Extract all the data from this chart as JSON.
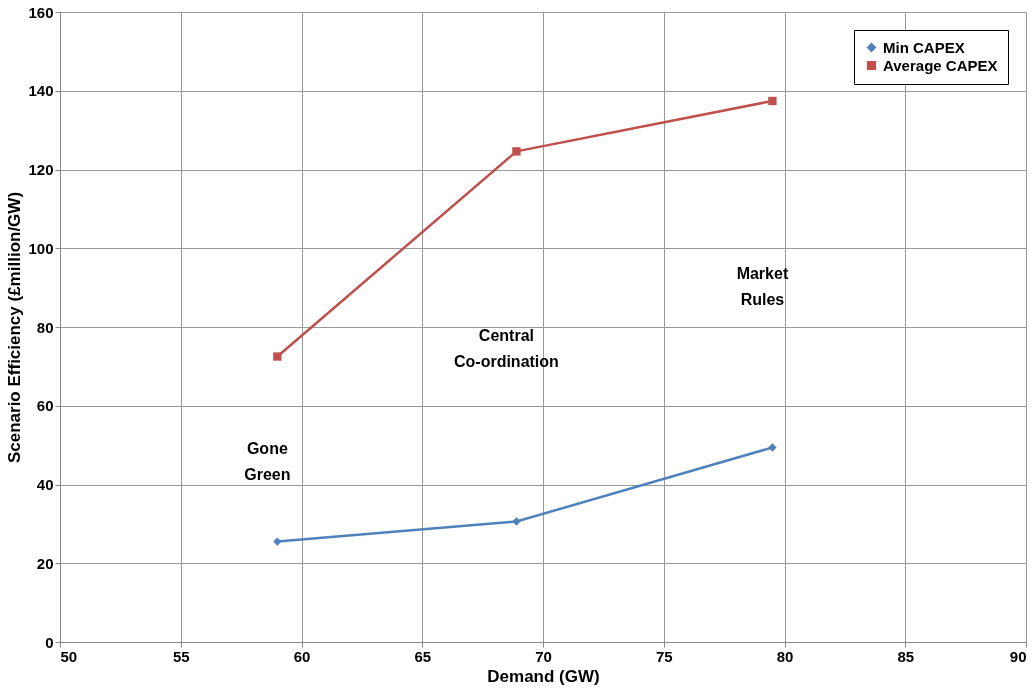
{
  "chart_data": {
    "type": "line",
    "xlabel": "Demand (GW)",
    "ylabel": "Scenario Efficiency (£million/GW)",
    "xlim": [
      50,
      90
    ],
    "xticks": [
      50,
      55,
      60,
      65,
      70,
      75,
      80,
      85,
      90
    ],
    "ylim": [
      0,
      160
    ],
    "yticks": [
      0,
      20,
      40,
      60,
      80,
      100,
      120,
      140,
      160
    ],
    "grid": true,
    "legend": "top right",
    "line_style": "solid",
    "series": [
      {
        "name": "Min CAPEX",
        "color": "#4f81bd",
        "marker": "diamond",
        "x": [
          59,
          68.9,
          79.5
        ],
        "values": [
          25.5,
          30.6,
          49.4
        ]
      },
      {
        "name": "Average CAPEX",
        "color": "#c0504d",
        "marker": "square",
        "x": [
          59,
          68.9,
          79.5
        ],
        "values": [
          72.5,
          124.6,
          137.4
        ]
      }
    ],
    "annotations": [
      "Gone Green",
      "Central Co-ordination",
      "Market Rules"
    ]
  }
}
